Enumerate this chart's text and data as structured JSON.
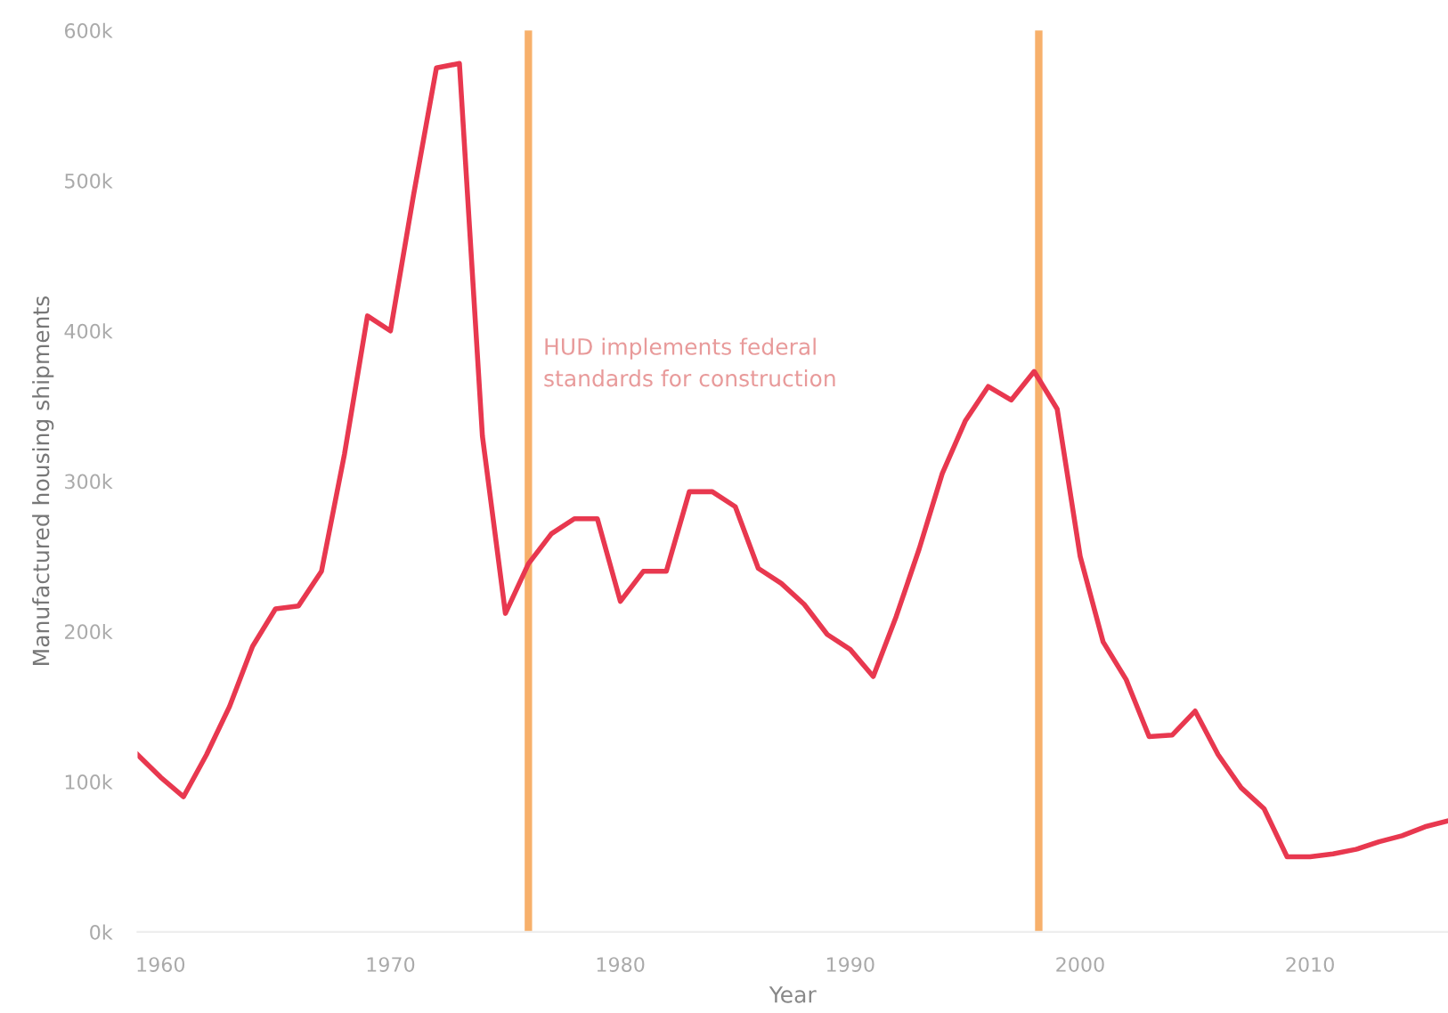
{
  "chart_data": {
    "type": "line",
    "xlabel": "Year",
    "ylabel": "Manufactured housing shipments",
    "x": [
      1959,
      1960,
      1961,
      1962,
      1963,
      1964,
      1965,
      1966,
      1967,
      1968,
      1969,
      1970,
      1971,
      1972,
      1973,
      1974,
      1975,
      1976,
      1977,
      1978,
      1979,
      1980,
      1981,
      1982,
      1983,
      1984,
      1985,
      1986,
      1987,
      1988,
      1989,
      1990,
      1991,
      1992,
      1993,
      1994,
      1995,
      1996,
      1997,
      1998,
      1999,
      2000,
      2001,
      2002,
      2003,
      2004,
      2005,
      2006,
      2007,
      2008,
      2009,
      2010,
      2011,
      2012,
      2013,
      2014,
      2015,
      2016
    ],
    "series": [
      {
        "color": "#e8384f",
        "values": [
          118,
          103,
          90,
          118,
          150,
          190,
          215,
          217,
          240,
          318,
          410,
          400,
          490,
          575,
          578,
          330,
          212,
          245,
          265,
          275,
          275,
          220,
          240,
          240,
          293,
          293,
          283,
          242,
          232,
          218,
          198,
          188,
          170,
          210,
          255,
          305,
          340,
          363,
          354,
          373,
          348,
          250,
          193,
          168,
          130,
          131,
          147,
          118,
          96,
          82,
          50,
          50,
          52,
          55,
          60,
          64,
          70,
          74
        ]
      }
    ],
    "xlim": [
      1959,
      2016
    ],
    "xticks": [
      1960,
      1970,
      1980,
      1990,
      2000,
      2010
    ],
    "ylim": [
      0,
      600
    ],
    "yticks": [
      {
        "value": 0,
        "label": "0k"
      },
      {
        "value": 100,
        "label": "100k"
      },
      {
        "value": 200,
        "label": "200k"
      },
      {
        "value": 300,
        "label": "300k"
      },
      {
        "value": 400,
        "label": "400k"
      },
      {
        "value": 500,
        "label": "500k"
      },
      {
        "value": 600,
        "label": "600k"
      }
    ],
    "ref_lines": [
      {
        "axis": "x",
        "value": 1976,
        "label": "HUD implements federal\nstandards for construction",
        "color": "#f7b06b"
      },
      {
        "axis": "x",
        "value": 1998.2,
        "label": null,
        "color": "#f7b06b"
      }
    ],
    "grid": false,
    "legend": false
  }
}
